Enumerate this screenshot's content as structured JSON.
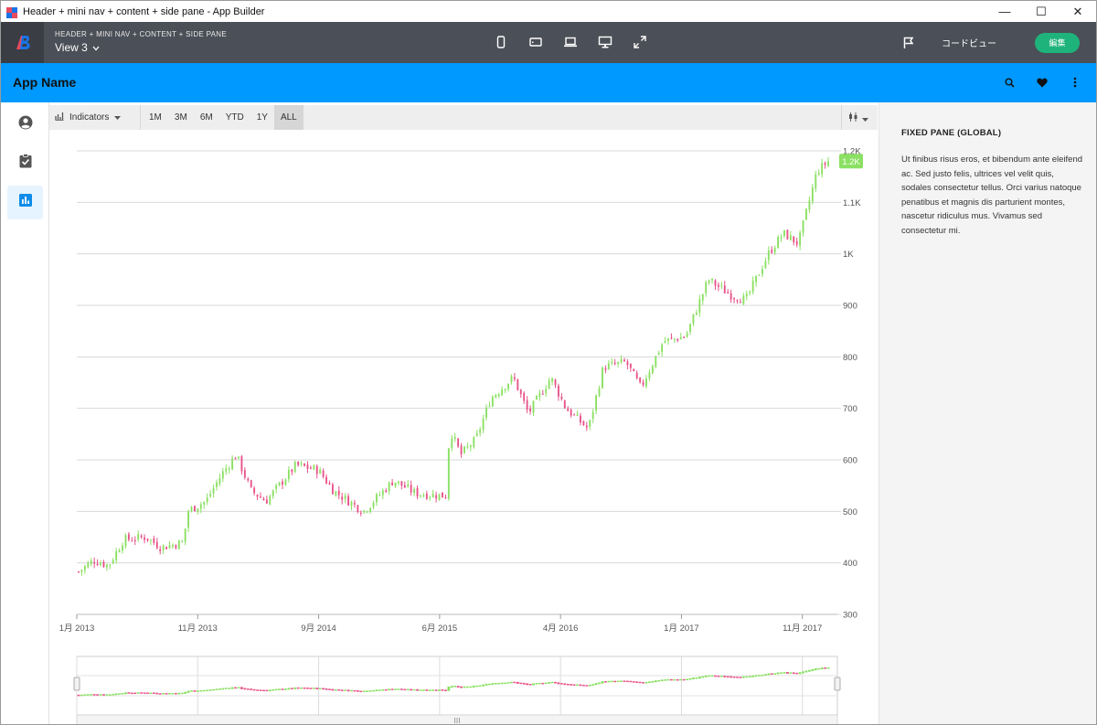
{
  "window": {
    "title": "Header + mini nav + content + side pane - App Builder",
    "minimize_glyph": "—",
    "maximize_glyph": "☐",
    "close_glyph": "✕"
  },
  "builder": {
    "subtitle": "HEADER + MINI NAV + CONTENT + SIDE PANE",
    "view_label": "View 3",
    "device_icons": [
      "phone-icon",
      "tablet-icon",
      "laptop-icon",
      "desktop-icon",
      "fullscreen-icon"
    ],
    "code_view_label": "コードビュー",
    "edit_label": "編集",
    "accent": "#1eb37b"
  },
  "app": {
    "name": "App Name",
    "bar_color": "#0099ff",
    "actions": [
      "search-icon",
      "heart-icon",
      "more-vert-icon"
    ]
  },
  "nav": {
    "items": [
      {
        "icon": "account-icon",
        "active": false
      },
      {
        "icon": "assignment-icon",
        "active": false
      },
      {
        "icon": "bar-chart-icon",
        "active": true
      }
    ]
  },
  "toolbar": {
    "indicators_label": "Indicators",
    "ranges": [
      "1M",
      "3M",
      "6M",
      "YTD",
      "1Y",
      "ALL"
    ],
    "active_range": "ALL",
    "chart_type_icon": "candlestick-icon"
  },
  "side_pane": {
    "title": "FIXED PANE (GLOBAL)",
    "body": "Ut finibus risus eros, et bibendum ante eleifend ac. Sed justo felis, ultrices vel velit quis, sodales consectetur tellus. Orci varius natoque penatibus et magnis dis parturient montes, nascetur ridiculus mus. Vivamus sed consectetur mi."
  },
  "chart_data": {
    "type": "candlestick",
    "up_color": "#8be063",
    "down_color": "#e8538a",
    "ylim": [
      300,
      1200
    ],
    "y_ticks": [
      {
        "value": 1200,
        "label": "1.2K"
      },
      {
        "value": 1100,
        "label": "1.1K"
      },
      {
        "value": 1000,
        "label": "1K"
      },
      {
        "value": 900,
        "label": "900"
      },
      {
        "value": 800,
        "label": "800"
      },
      {
        "value": 700,
        "label": "700"
      },
      {
        "value": 600,
        "label": "600"
      },
      {
        "value": 500,
        "label": "500"
      },
      {
        "value": 400,
        "label": "400"
      },
      {
        "value": 300,
        "label": "300"
      }
    ],
    "x_ticks": [
      {
        "t": 0.0,
        "label": "1月 2013"
      },
      {
        "t": 0.159,
        "label": "11月 2013"
      },
      {
        "t": 0.318,
        "label": "9月 2014"
      },
      {
        "t": 0.477,
        "label": "6月 2015"
      },
      {
        "t": 0.636,
        "label": "4月 2016"
      },
      {
        "t": 0.795,
        "label": "1月 2017"
      },
      {
        "t": 0.954,
        "label": "11月 2017"
      }
    ],
    "last_value_label": "1.2K",
    "path_keypoints": [
      [
        0.0,
        383
      ],
      [
        0.02,
        405
      ],
      [
        0.04,
        395
      ],
      [
        0.06,
        445
      ],
      [
        0.09,
        450
      ],
      [
        0.11,
        430
      ],
      [
        0.14,
        440
      ],
      [
        0.145,
        500
      ],
      [
        0.17,
        520
      ],
      [
        0.19,
        570
      ],
      [
        0.21,
        610
      ],
      [
        0.23,
        540
      ],
      [
        0.25,
        520
      ],
      [
        0.29,
        590
      ],
      [
        0.32,
        580
      ],
      [
        0.34,
        540
      ],
      [
        0.38,
        500
      ],
      [
        0.42,
        560
      ],
      [
        0.45,
        535
      ],
      [
        0.49,
        530
      ],
      [
        0.495,
        660
      ],
      [
        0.51,
        610
      ],
      [
        0.53,
        640
      ],
      [
        0.55,
        720
      ],
      [
        0.58,
        760
      ],
      [
        0.6,
        690
      ],
      [
        0.63,
        760
      ],
      [
        0.65,
        700
      ],
      [
        0.68,
        660
      ],
      [
        0.7,
        780
      ],
      [
        0.73,
        790
      ],
      [
        0.75,
        740
      ],
      [
        0.78,
        830
      ],
      [
        0.81,
        840
      ],
      [
        0.84,
        950
      ],
      [
        0.87,
        920
      ],
      [
        0.89,
        910
      ],
      [
        0.92,
        1000
      ],
      [
        0.94,
        1040
      ],
      [
        0.96,
        1020
      ],
      [
        0.985,
        1160
      ],
      [
        1.0,
        1180
      ]
    ]
  }
}
